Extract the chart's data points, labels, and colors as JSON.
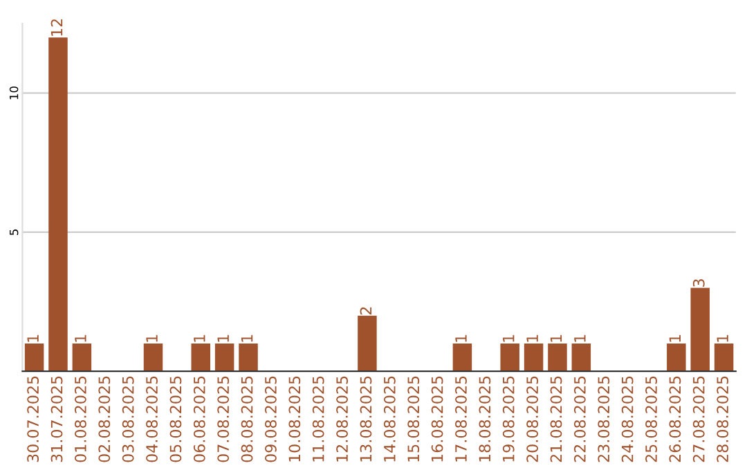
{
  "chart_data": {
    "type": "bar",
    "categories": [
      "30.07.2025",
      "31.07.2025",
      "01.08.2025",
      "02.08.2025",
      "03.08.2025",
      "04.08.2025",
      "05.08.2025",
      "06.08.2025",
      "07.08.2025",
      "08.08.2025",
      "09.08.2025",
      "10.08.2025",
      "11.08.2025",
      "12.08.2025",
      "13.08.2025",
      "14.08.2025",
      "15.08.2025",
      "16.08.2025",
      "17.08.2025",
      "18.08.2025",
      "19.08.2025",
      "20.08.2025",
      "21.08.2025",
      "22.08.2025",
      "23.08.2025",
      "24.08.2025",
      "25.08.2025",
      "26.08.2025",
      "27.08.2025",
      "28.08.2025"
    ],
    "values": [
      1,
      12,
      1,
      0,
      0,
      1,
      0,
      1,
      1,
      1,
      0,
      0,
      0,
      0,
      2,
      0,
      0,
      0,
      1,
      0,
      1,
      1,
      1,
      1,
      0,
      0,
      0,
      1,
      3,
      1
    ],
    "value_labels": [
      "1",
      "12",
      "1",
      null,
      null,
      "1",
      null,
      "1",
      "1",
      "1",
      null,
      null,
      null,
      null,
      "2",
      null,
      null,
      null,
      "1",
      null,
      "1",
      "1",
      "1",
      "1",
      null,
      null,
      null,
      "1",
      "3",
      "1"
    ],
    "color": "#a0522d",
    "ylim": [
      0,
      12.5
    ],
    "yticks": [
      5,
      10
    ],
    "grid": "y"
  }
}
